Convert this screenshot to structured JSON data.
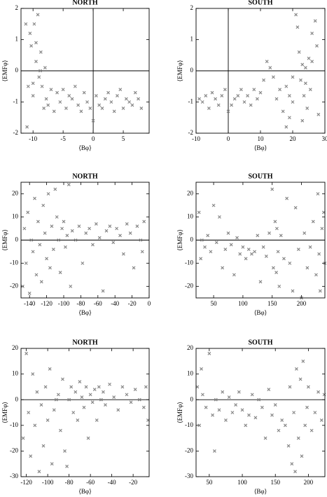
{
  "chart_data": [
    {
      "type": "scatter",
      "title": "NORTH",
      "x_label": "⟨Bφ⟩",
      "y_label": "⟨EMFφ⟩",
      "color": "#888888",
      "zero_lines": true,
      "xlim": [
        -12,
        9.3
      ],
      "ylim": [
        -2,
        2
      ],
      "xticks": [
        -10,
        -5,
        0,
        5
      ],
      "yticks": [
        -2,
        -1,
        0,
        1,
        2
      ],
      "x": [
        -11,
        -10.8,
        -10.5,
        -10.3,
        -10,
        -9.8,
        -9.5,
        -9.2,
        -9,
        -8.7,
        -8.5,
        -8.2,
        -8,
        -7.8,
        -7.5,
        -7,
        -6.5,
        -6,
        -5.5,
        -5,
        -4.5,
        -4,
        -3.5,
        -3,
        -2.5,
        -2,
        -1.5,
        -1,
        -0.5,
        0,
        0.5,
        1,
        1.5,
        2,
        2.5,
        3,
        3.5,
        4,
        4.5,
        5,
        5.5,
        6,
        6.5,
        7,
        7.5,
        8,
        -11.2,
        -10,
        -9.5,
        -8.8
      ],
      "y": [
        -1.8,
        -0.5,
        1.2,
        0.8,
        -0.8,
        1.5,
        0.3,
        1.8,
        -0.2,
        0.6,
        -0.5,
        -1.2,
        0.1,
        -0.9,
        -1.1,
        -0.6,
        -1.3,
        -0.7,
        -1.0,
        -0.6,
        -1.2,
        -0.8,
        -0.9,
        -0.5,
        -1.1,
        -1.3,
        -0.7,
        -1.0,
        -1.2,
        -1.6,
        -0.8,
        -1.1,
        -1.2,
        -0.9,
        -0.7,
        -1.0,
        -1.3,
        -0.8,
        -0.6,
        -1.2,
        -0.9,
        -1.0,
        -1.1,
        -0.7,
        -0.9,
        -1.2,
        1.5,
        -0.4,
        0.9,
        0.0
      ]
    },
    {
      "type": "scatter",
      "title": "SOUTH",
      "x_label": "⟨Bφ⟩",
      "y_label": "⟨EMFφ⟩",
      "color": "#888888",
      "zero_lines": true,
      "xlim": [
        -10,
        30
      ],
      "ylim": [
        -2,
        2
      ],
      "xticks": [
        -10,
        0,
        10,
        20,
        30
      ],
      "yticks": [
        -2,
        -1,
        0,
        1,
        2
      ],
      "x": [
        -9,
        -8,
        -7,
        -6,
        -5,
        -4,
        -3,
        -2,
        -1,
        0,
        1,
        2,
        3,
        4,
        5,
        6,
        7,
        8,
        9,
        10,
        11,
        12,
        13,
        14,
        15,
        16,
        17,
        18,
        19,
        20,
        21,
        21.5,
        22,
        22.5,
        23,
        23.5,
        24,
        24.5,
        25,
        25.5,
        26,
        27,
        27.5,
        28,
        18,
        19,
        20,
        23,
        24,
        26
      ],
      "y": [
        -0.9,
        -1.0,
        -0.8,
        -1.2,
        -0.7,
        -0.9,
        -1.1,
        -0.8,
        -0.6,
        -1.3,
        -1.1,
        -0.9,
        -0.8,
        -0.6,
        -1.0,
        -0.8,
        -1.1,
        -0.6,
        -0.9,
        -0.7,
        -0.3,
        0.3,
        0.1,
        -0.2,
        -0.9,
        -0.6,
        -1.3,
        -0.5,
        -1.5,
        -0.2,
        1.8,
        1.4,
        0.6,
        -0.3,
        0.2,
        -0.8,
        0.1,
        -1.2,
        0.4,
        -0.6,
        0.3,
        1.6,
        0.8,
        -1.4,
        -1.8,
        -0.8,
        -1.0,
        -1.6,
        -0.4,
        1.2
      ]
    },
    {
      "type": "scatter",
      "title": "NORTH",
      "x_label": "⟨Bφ⟩",
      "y_label": "⟨EMFφ⟩",
      "color": "#888888",
      "zero_lines": true,
      "xlim": [
        -150,
        0
      ],
      "ylim": [
        -25,
        25
      ],
      "xticks": [
        -140,
        -120,
        -100,
        -80,
        -60,
        -40,
        -20,
        0
      ],
      "yticks": [
        -20,
        -10,
        0,
        10,
        20
      ],
      "x": [
        -148,
        -146,
        -144,
        -142,
        -140,
        -138,
        -136,
        -134,
        -132,
        -130,
        -128,
        -126,
        -124,
        -122,
        -120,
        -118,
        -116,
        -114,
        -112,
        -110,
        -108,
        -106,
        -104,
        -102,
        -100,
        -98,
        -96,
        -94,
        -92,
        -90,
        -86,
        -82,
        -78,
        -74,
        -70,
        -66,
        -62,
        -58,
        -54,
        -50,
        -46,
        -42,
        -38,
        -34,
        -30,
        -26,
        -22,
        -18,
        -14,
        -10,
        -8,
        -6
      ],
      "y": [
        -20,
        5,
        -10,
        12,
        -23,
        0,
        -5,
        18,
        -15,
        8,
        -2,
        -18,
        15,
        3,
        -8,
        20,
        -12,
        6,
        -4,
        22,
        10,
        0,
        -14,
        5,
        8,
        -3,
        2,
        24,
        -20,
        4,
        0,
        6,
        -10,
        3,
        5,
        -2,
        7,
        1,
        -22,
        4,
        6,
        -1,
        5,
        2,
        -6,
        7,
        3,
        -12,
        6,
        0,
        -5,
        8
      ]
    },
    {
      "type": "scatter",
      "title": "SOUTH",
      "x_label": "⟨Bφ⟩",
      "y_label": "⟨EMFφ⟩",
      "color": "#888888",
      "zero_lines": true,
      "xlim": [
        20,
        240
      ],
      "ylim": [
        -25,
        25
      ],
      "xticks": [
        50,
        100,
        150,
        200
      ],
      "yticks": [
        -20,
        -10,
        0,
        10,
        20
      ],
      "x": [
        25,
        28,
        30,
        35,
        40,
        45,
        50,
        55,
        60,
        65,
        70,
        75,
        80,
        85,
        90,
        95,
        100,
        105,
        110,
        115,
        120,
        125,
        130,
        135,
        140,
        145,
        150,
        152,
        155,
        157,
        158,
        160,
        162,
        165,
        170,
        175,
        180,
        185,
        190,
        195,
        200,
        205,
        210,
        215,
        220,
        225,
        228,
        230,
        232,
        235,
        238,
        240
      ],
      "y": [
        12,
        -8,
        0,
        -3,
        2,
        -5,
        15,
        -1,
        10,
        -12,
        -4,
        3,
        -2,
        -15,
        1,
        -6,
        -3,
        -8,
        -4,
        -6,
        -5,
        2,
        -18,
        -3,
        -7,
        3,
        22,
        -12,
        8,
        -14,
        5,
        -5,
        -20,
        2,
        -8,
        18,
        -10,
        -22,
        14,
        -4,
        -25,
        3,
        -12,
        -3,
        8,
        -15,
        20,
        -6,
        -22,
        5,
        12,
        -10
      ]
    },
    {
      "type": "scatter",
      "title": "NORTH",
      "x_label": "⟨Bφ⟩",
      "y_label": "⟨EMFφ⟩",
      "color": "#888888",
      "zero_lines": true,
      "xlim": [
        -125,
        -5
      ],
      "ylim": [
        -30,
        20
      ],
      "xticks": [
        -120,
        -100,
        -80,
        -60,
        -40,
        -20
      ],
      "yticks": [
        -30,
        -20,
        -10,
        0,
        10,
        20
      ],
      "x": [
        -123,
        -120,
        -118,
        -116,
        -114,
        -112,
        -110,
        -108,
        -106,
        -104,
        -102,
        -100,
        -98,
        -96,
        -94,
        -92,
        -90,
        -88,
        -86,
        -84,
        -82,
        -80,
        -78,
        -76,
        -74,
        -72,
        -70,
        -68,
        -66,
        -64,
        -62,
        -60,
        -58,
        -56,
        -54,
        -52,
        -50,
        -48,
        -46,
        -42,
        -38,
        -34,
        -30,
        -26,
        -22,
        -18,
        -14,
        -10,
        -8,
        -6
      ],
      "y": [
        -15,
        18,
        -5,
        -22,
        10,
        -10,
        3,
        -28,
        -2,
        -18,
        5,
        -8,
        12,
        -25,
        -4,
        0,
        2,
        -12,
        8,
        -20,
        -26,
        0,
        5,
        -5,
        3,
        -8,
        7,
        1,
        -3,
        5,
        -15,
        2,
        -1,
        4,
        -8,
        5,
        0,
        3,
        -2,
        6,
        1,
        -4,
        5,
        2,
        -1,
        4,
        0,
        -3,
        5,
        -8
      ]
    },
    {
      "type": "scatter",
      "title": "SOUTH",
      "x_label": "⟨Bφ⟩",
      "y_label": "⟨EMFφ⟩",
      "color": "#888888",
      "zero_lines": true,
      "xlim": [
        30,
        225
      ],
      "ylim": [
        -30,
        20
      ],
      "xticks": [
        50,
        100,
        150,
        200
      ],
      "yticks": [
        -30,
        -20,
        -10,
        0,
        10,
        20
      ],
      "x": [
        32,
        35,
        38,
        40,
        45,
        50,
        55,
        58,
        60,
        65,
        70,
        75,
        80,
        85,
        90,
        95,
        100,
        105,
        110,
        115,
        120,
        125,
        130,
        135,
        140,
        145,
        150,
        155,
        160,
        165,
        170,
        172,
        175,
        178,
        180,
        182,
        185,
        188,
        190,
        192,
        195,
        198,
        200,
        205,
        210,
        215,
        220,
        224
      ],
      "y": [
        5,
        -10,
        12,
        2,
        -3,
        18,
        -6,
        -20,
        0,
        -4,
        3,
        -8,
        1,
        -5,
        -2,
        3,
        -4,
        -10,
        -6,
        2,
        -7,
        0,
        -3,
        -15,
        4,
        -6,
        -2,
        -12,
        -8,
        -10,
        -18,
        5,
        -25,
        -5,
        -28,
        12,
        -15,
        8,
        -22,
        15,
        -10,
        -3,
        5,
        -12,
        -5,
        3,
        -8,
        2
      ]
    }
  ]
}
